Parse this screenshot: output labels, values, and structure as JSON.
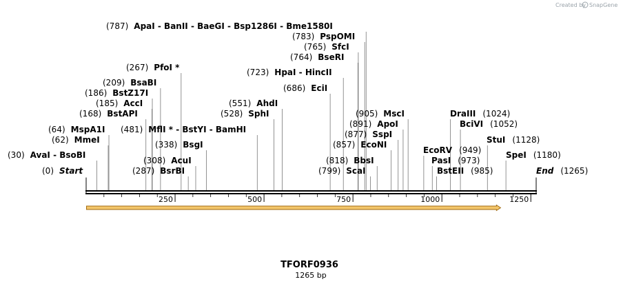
{
  "watermark": {
    "created_by": "Created by",
    "brand": "SnapGene"
  },
  "title": "TFORF0936",
  "length_label": "1265 bp",
  "sequence_length": 1265,
  "ruler_ticks": [
    "250",
    "500",
    "750",
    "1000",
    "1250"
  ],
  "ruler_values": [
    250,
    500,
    750,
    1000,
    1250
  ],
  "feature_arrow": {
    "start": 1,
    "end": 1165,
    "color": "#f3c66b",
    "outline": "#a06a10"
  },
  "sites": [
    {
      "pos": 0,
      "pos_label": "(0)",
      "names": "Start",
      "italic": true
    },
    {
      "pos": 30,
      "pos_label": "(30)",
      "names": "AvaI  -  BsoBI"
    },
    {
      "pos": 62,
      "pos_label": "(62)",
      "names": "MmeI"
    },
    {
      "pos": 64,
      "pos_label": "(64)",
      "names": "MspA1I"
    },
    {
      "pos": 168,
      "pos_label": "(168)",
      "names": "BstAPI"
    },
    {
      "pos": 185,
      "pos_label": "(185)",
      "names": "AccI"
    },
    {
      "pos": 186,
      "pos_label": "(186)",
      "names": "BstZ17I"
    },
    {
      "pos": 209,
      "pos_label": "(209)",
      "names": "BsaBI"
    },
    {
      "pos": 267,
      "pos_label": "(267)",
      "names": "PfoI *"
    },
    {
      "pos": 287,
      "pos_label": "(287)",
      "names": "BsrBI"
    },
    {
      "pos": 308,
      "pos_label": "(308)",
      "names": "AcuI"
    },
    {
      "pos": 338,
      "pos_label": "(338)",
      "names": "BsgI"
    },
    {
      "pos": 481,
      "pos_label": "(481)",
      "names": "MflI *  -  BstYI  -  BamHI"
    },
    {
      "pos": 528,
      "pos_label": "(528)",
      "names": "SphI"
    },
    {
      "pos": 551,
      "pos_label": "(551)",
      "names": "AhdI"
    },
    {
      "pos": 686,
      "pos_label": "(686)",
      "names": "EciI"
    },
    {
      "pos": 723,
      "pos_label": "(723)",
      "names": "HpaI  -  HincII"
    },
    {
      "pos": 764,
      "pos_label": "(764)",
      "names": "BseRI"
    },
    {
      "pos": 765,
      "pos_label": "(765)",
      "names": "SfcI"
    },
    {
      "pos": 783,
      "pos_label": "(783)",
      "names": "PspOMI"
    },
    {
      "pos": 787,
      "pos_label": "(787)",
      "names": "ApaI  -  BanII  -  BaeGI  -  Bsp1286I  -  Bme1580I"
    },
    {
      "pos": 799,
      "pos_label": "(799)",
      "names": "ScaI"
    },
    {
      "pos": 818,
      "pos_label": "(818)",
      "names": "BbsI"
    },
    {
      "pos": 857,
      "pos_label": "(857)",
      "names": "EcoNI"
    },
    {
      "pos": 877,
      "pos_label": "(877)",
      "names": "SspI"
    },
    {
      "pos": 891,
      "pos_label": "(891)",
      "names": "ApoI"
    },
    {
      "pos": 905,
      "pos_label": "(905)",
      "names": "MscI"
    },
    {
      "pos": 949,
      "pos_label": "(949)",
      "names": "EcoRV"
    },
    {
      "pos": 973,
      "pos_label": "(973)",
      "names": "PasI"
    },
    {
      "pos": 985,
      "pos_label": "(985)",
      "names": "BstEII"
    },
    {
      "pos": 1024,
      "pos_label": "(1024)",
      "names": "DraIII"
    },
    {
      "pos": 1052,
      "pos_label": "(1052)",
      "names": "BciVI"
    },
    {
      "pos": 1128,
      "pos_label": "(1128)",
      "names": "StuI"
    },
    {
      "pos": 1180,
      "pos_label": "(1180)",
      "names": "SpeI"
    },
    {
      "pos": 1265,
      "pos_label": "(1265)",
      "names": "End",
      "italic": true
    }
  ]
}
